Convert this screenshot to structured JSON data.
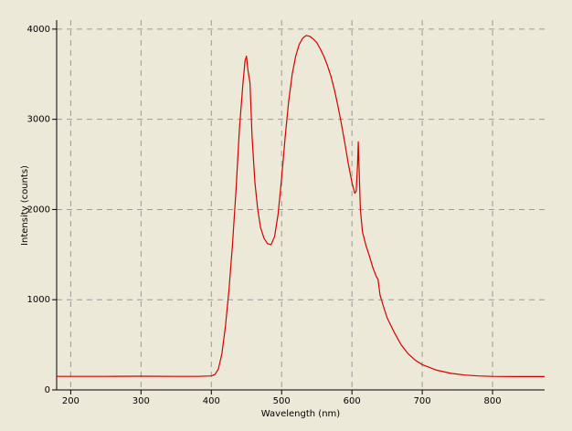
{
  "chart_data": {
    "type": "line",
    "x_label": "Wavelength (nm)",
    "y_label": "Intensity (counts)",
    "x": [
      180,
      200,
      250,
      300,
      350,
      380,
      400,
      405,
      410,
      415,
      420,
      425,
      430,
      435,
      440,
      445,
      448,
      450,
      452,
      455,
      458,
      462,
      466,
      470,
      475,
      480,
      485,
      490,
      495,
      500,
      505,
      510,
      515,
      520,
      525,
      530,
      535,
      540,
      545,
      550,
      555,
      560,
      565,
      570,
      575,
      580,
      585,
      590,
      595,
      600,
      604,
      606,
      608,
      609,
      610,
      612,
      615,
      620,
      625,
      630,
      635,
      637,
      640,
      645,
      650,
      660,
      670,
      680,
      690,
      700,
      720,
      740,
      760,
      780,
      800,
      830,
      874
    ],
    "values": [
      150,
      150,
      150,
      152,
      150,
      150,
      155,
      170,
      230,
      400,
      700,
      1100,
      1600,
      2200,
      2900,
      3400,
      3650,
      3700,
      3550,
      3400,
      2800,
      2300,
      2000,
      1800,
      1680,
      1620,
      1610,
      1700,
      1950,
      2350,
      2800,
      3200,
      3500,
      3700,
      3830,
      3900,
      3930,
      3920,
      3890,
      3850,
      3780,
      3700,
      3600,
      3480,
      3330,
      3150,
      2950,
      2730,
      2500,
      2300,
      2180,
      2200,
      2500,
      2750,
      2500,
      2000,
      1750,
      1600,
      1480,
      1350,
      1250,
      1230,
      1050,
      920,
      800,
      640,
      500,
      400,
      330,
      280,
      220,
      185,
      165,
      155,
      150,
      148,
      148
    ],
    "color": "#d40000",
    "xlim": [
      180,
      874
    ],
    "xticks": [
      200,
      300,
      400,
      500,
      600,
      700,
      800
    ],
    "ylim": [
      0,
      4100
    ],
    "yticks": [
      0,
      1000,
      2000,
      3000,
      4000
    ],
    "grid": true
  }
}
